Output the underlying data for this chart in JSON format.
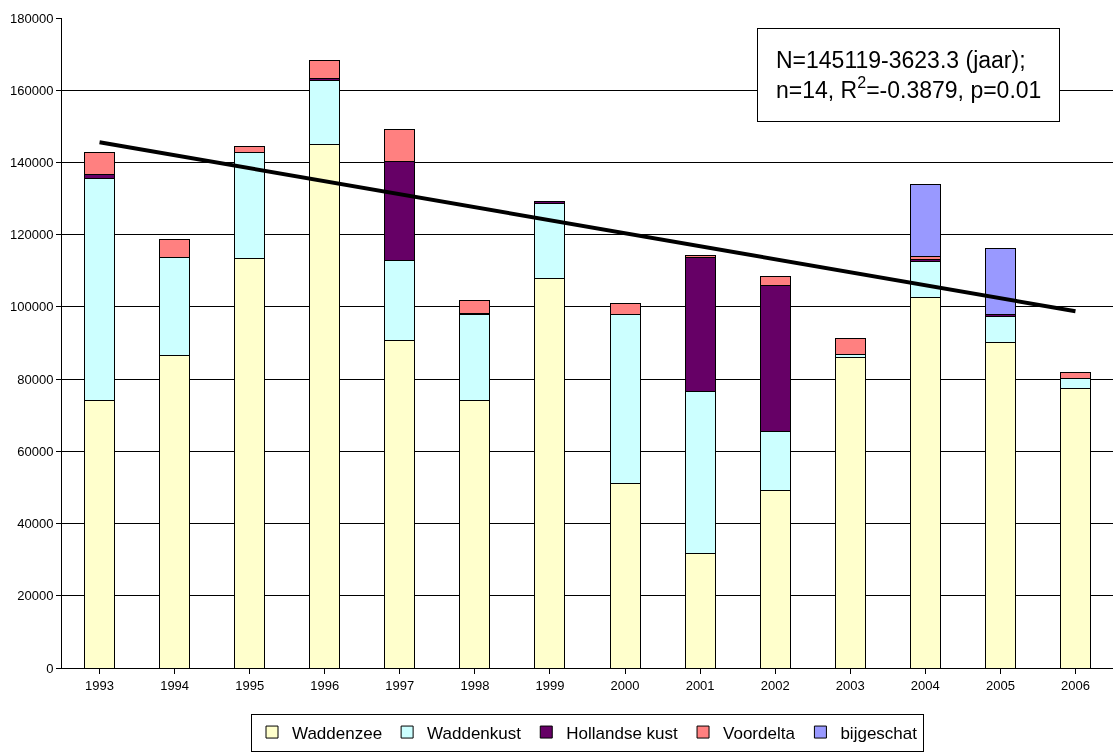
{
  "chart_data": {
    "type": "bar",
    "stacked": true,
    "categories": [
      "1993",
      "1994",
      "1995",
      "1996",
      "1997",
      "1998",
      "1999",
      "2000",
      "2001",
      "2002",
      "2003",
      "2004",
      "2005",
      "2006"
    ],
    "series": [
      {
        "name": "Waddenzee",
        "color": "#ffffcc",
        "values": [
          74000,
          86500,
          113400,
          145000,
          90800,
          74100,
          107800,
          51200,
          31800,
          49100,
          86000,
          102500,
          90100,
          77400
        ]
      },
      {
        "name": "Waddenkust",
        "color": "#ccffff",
        "values": [
          61500,
          27300,
          29400,
          17800,
          22000,
          23800,
          20700,
          46700,
          44700,
          16500,
          900,
          10100,
          7200,
          2700
        ]
      },
      {
        "name": "Hollandse kust",
        "color": "#660066",
        "values": [
          1200,
          null,
          null,
          400,
          27600,
          300,
          700,
          null,
          37200,
          40200,
          null,
          600,
          600,
          null
        ]
      },
      {
        "name": "Voordelta",
        "color": "#ff8080",
        "values": [
          6100,
          4800,
          1700,
          4900,
          8700,
          3700,
          null,
          3100,
          600,
          2500,
          4400,
          700,
          null,
          1600
        ]
      },
      {
        "name": "bijgeschat",
        "color": "#9999ff",
        "values": [
          null,
          null,
          null,
          null,
          null,
          null,
          null,
          null,
          null,
          null,
          null,
          20000,
          18300,
          null
        ]
      },
      {
        "type": "line",
        "color": "#000000",
        "values": [
          145600,
          null,
          null,
          null,
          null,
          null,
          null,
          null,
          null,
          null,
          null,
          null,
          null,
          98800
        ]
      }
    ],
    "ylim": [
      0,
      180000
    ],
    "yticks": [
      0,
      20000,
      40000,
      60000,
      80000,
      100000,
      120000,
      140000,
      160000,
      180000
    ],
    "grid": "y",
    "legend": "bottom",
    "annotations": [
      "N=145119-3623.3 (jaar);",
      "n=14, R$^{2}$=-0.3879, p=0.01"
    ]
  }
}
